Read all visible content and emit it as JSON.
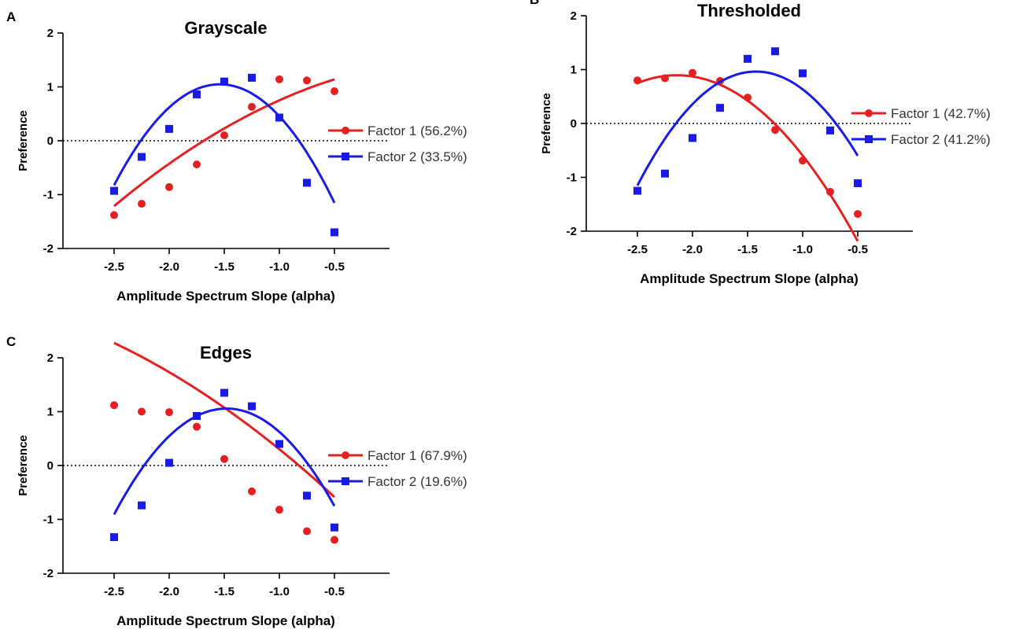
{
  "figure": {
    "panels": [
      "A",
      "B",
      "C"
    ]
  },
  "colors": {
    "factor1": "#e62020",
    "factor2": "#1a1ae6",
    "axis": "#000000",
    "zero_line": "#000000"
  },
  "chart_data": [
    {
      "type": "scatter",
      "panel": "A",
      "title": "Grayscale",
      "xlabel": "Amplitude Spectrum Slope (alpha)",
      "ylabel": "Preference",
      "xlim": [
        -3.0,
        0.0
      ],
      "ylim": [
        -2,
        2
      ],
      "xticks": [
        -2.5,
        -2.0,
        -1.5,
        -1.0,
        -0.5
      ],
      "xtick_labels": [
        "-2.5",
        "-2.0",
        "-1.5",
        "-1.0",
        "-0.5"
      ],
      "yticks": [
        2,
        1,
        0,
        -1,
        -2
      ],
      "ytick_labels": [
        "2",
        "1",
        "0",
        "-1",
        "-2"
      ],
      "zero_line": true,
      "legend_position": "right",
      "x": [
        -2.5,
        -2.25,
        -2.0,
        -1.75,
        -1.5,
        -1.25,
        -1.0,
        -0.75,
        -0.5
      ],
      "series": [
        {
          "name": "Factor 1",
          "legend": "Factor 1 (56.2%)",
          "marker": "circle",
          "values": [
            -1.38,
            -1.17,
            -0.86,
            -0.44,
            0.1,
            0.63,
            1.14,
            1.12,
            0.92
          ],
          "fit": [
            -0.265,
            0.382,
            1.398
          ]
        },
        {
          "name": "Factor 2",
          "legend": "Factor 2 (33.5%)",
          "marker": "square",
          "values": [
            -0.93,
            -0.3,
            0.22,
            0.86,
            1.1,
            1.17,
            0.43,
            -0.78,
            -1.7
          ],
          "fit": [
            -2.034,
            -6.266,
            -3.777
          ]
        }
      ]
    },
    {
      "type": "scatter",
      "panel": "B",
      "title": "Thresholded",
      "xlabel": "Amplitude Spectrum Slope (alpha)",
      "ylabel": "Preference",
      "xlim": [
        -3.0,
        0.0
      ],
      "ylim": [
        -2,
        2
      ],
      "xticks": [
        -2.5,
        -2.0,
        -1.5,
        -1.0,
        -0.5
      ],
      "xtick_labels": [
        "-2.5",
        "-2.0",
        "-1.5",
        "-1.0",
        "-0.5"
      ],
      "yticks": [
        2,
        1,
        0,
        -1,
        -2
      ],
      "ytick_labels": [
        "2",
        "1",
        "0",
        "-1",
        "-2"
      ],
      "zero_line": true,
      "legend_position": "right",
      "x": [
        -2.5,
        -2.25,
        -2.0,
        -1.75,
        -1.5,
        -1.25,
        -1.0,
        -0.75,
        -0.5
      ],
      "series": [
        {
          "name": "Factor 1",
          "legend": "Factor 1 (42.7%)",
          "marker": "circle",
          "values": [
            0.8,
            0.84,
            0.94,
            0.79,
            0.48,
            -0.12,
            -0.69,
            -1.27,
            -1.68
          ],
          "fit": [
            -1.142,
            -4.893,
            -4.346
          ]
        },
        {
          "name": "Factor 2",
          "legend": "Factor 2 (41.2%)",
          "marker": "square",
          "values": [
            -1.25,
            -0.93,
            -0.27,
            0.29,
            1.2,
            1.34,
            0.93,
            -0.13,
            -1.11
          ],
          "fit": [
            -1.829,
            -5.211,
            -2.748
          ]
        }
      ]
    },
    {
      "type": "scatter",
      "panel": "C",
      "title": "Edges",
      "xlabel": "Amplitude Spectrum Slope (alpha)",
      "ylabel": "Preference",
      "xlim": [
        -3.0,
        0.0
      ],
      "ylim": [
        -2,
        2
      ],
      "xticks": [
        -2.5,
        -2.0,
        -1.5,
        -1.0,
        -0.5
      ],
      "xtick_labels": [
        "-2.5",
        "-2.0",
        "-1.5",
        "-1.0",
        "-0.5"
      ],
      "yticks": [
        2,
        1,
        0,
        -1,
        -2
      ],
      "ytick_labels": [
        "2",
        "1",
        "0",
        "-1",
        "-2"
      ],
      "zero_line": true,
      "legend_position": "right",
      "x": [
        -2.5,
        -2.25,
        -2.0,
        -1.75,
        -1.5,
        -1.25,
        -1.0,
        -0.75,
        -0.5
      ],
      "series": [
        {
          "name": "Factor 1",
          "legend": "Factor 1 (67.9%)",
          "marker": "circle",
          "values": [
            1.12,
            1.0,
            0.99,
            0.72,
            0.12,
            -0.48,
            -0.82,
            -1.22,
            -1.38
          ],
          "fit": [
            -0.229,
            -2.117,
            -1.586
          ]
        },
        {
          "name": "Factor 2",
          "legend": "Factor 2 (19.6%)",
          "marker": "square",
          "values": [
            -1.33,
            -0.74,
            0.05,
            0.92,
            1.35,
            1.1,
            0.4,
            -0.56,
            -1.15
          ],
          "fit": [
            -1.886,
            -5.58,
            -3.07
          ]
        }
      ]
    }
  ]
}
